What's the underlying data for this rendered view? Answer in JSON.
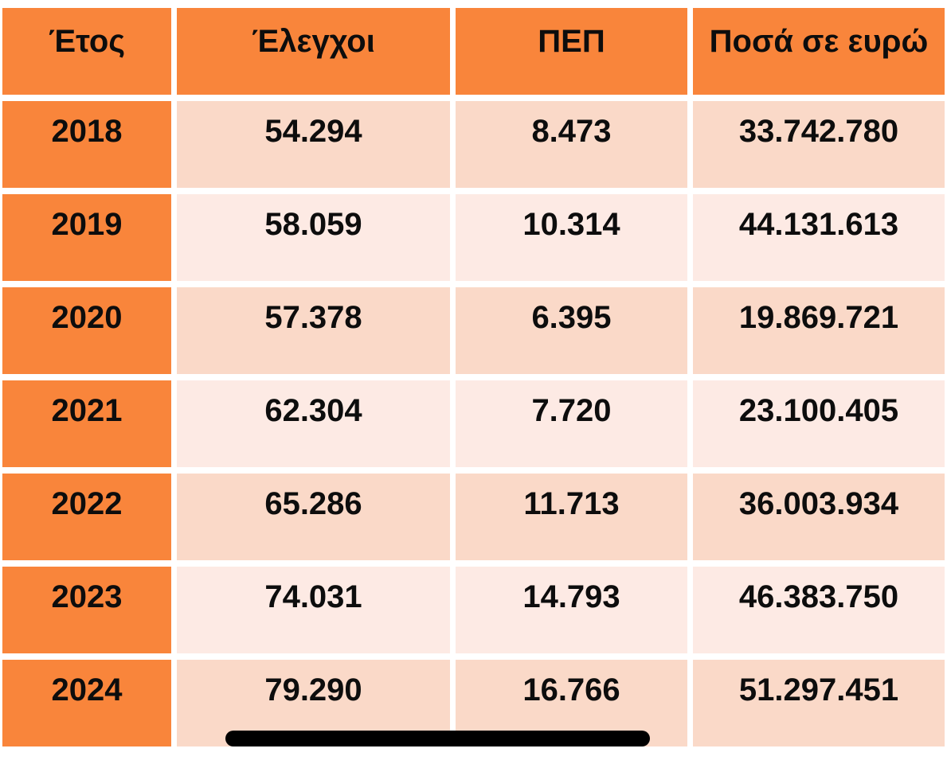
{
  "colors": {
    "orange": "#f9853b",
    "band_dark": "#fad9c8",
    "band_light": "#fdeae4",
    "text": "#0d0d0d",
    "background": "#ffffff",
    "marker": "#000000"
  },
  "chart_data": {
    "type": "table",
    "columns": [
      "Έτος",
      "Έλεγχοι",
      "ΠΕΠ",
      "Ποσά σε ευρώ"
    ],
    "rows": [
      [
        "2018",
        "54.294",
        "8.473",
        "33.742.780"
      ],
      [
        "2019",
        "58.059",
        "10.314",
        "44.131.613"
      ],
      [
        "2020",
        "57.378",
        "6.395",
        "19.869.721"
      ],
      [
        "2021",
        "62.304",
        "7.720",
        "23.100.405"
      ],
      [
        "2022",
        "65.286",
        "11.713",
        "36.003.934"
      ],
      [
        "2023",
        "74.031",
        "14.793",
        "46.383.750"
      ],
      [
        "2024",
        "79.290",
        "16.766",
        "51.297.451"
      ]
    ]
  }
}
